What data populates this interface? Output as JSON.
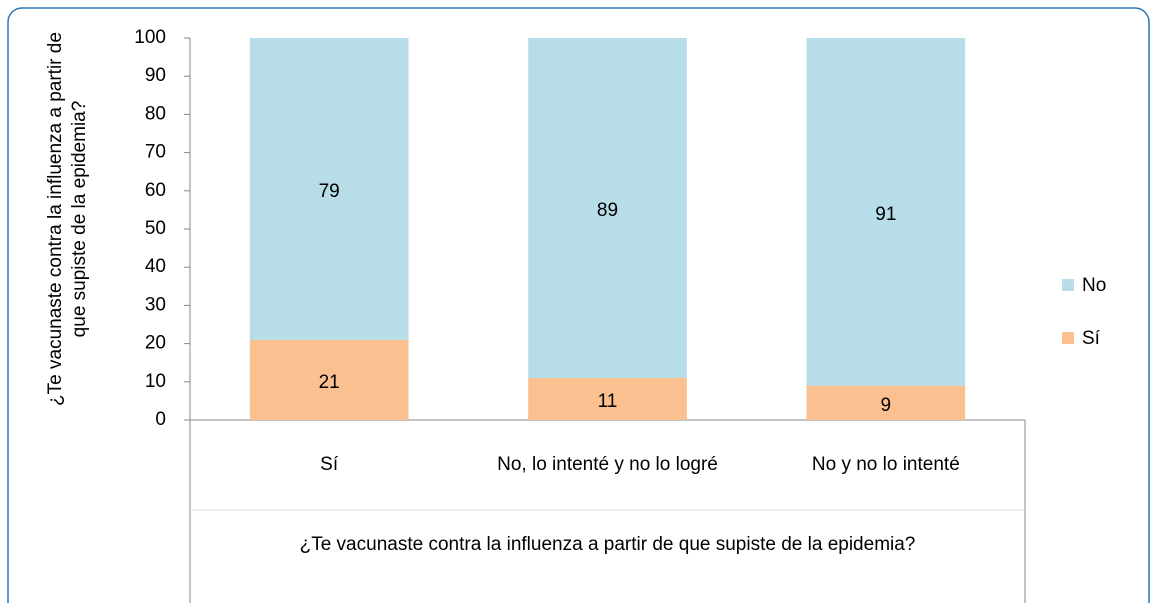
{
  "chart_data": {
    "type": "stacked_bar",
    "x_label": "¿Te vacunaste contra la influenza a partir de que supiste de la epidemia?",
    "y_label": "¿Te vacunaste contra la influenza a partir de que supiste de la epidemia?",
    "categories": [
      "Sí",
      "No, lo intenté y no lo logré",
      "No y no lo intenté"
    ],
    "series": [
      {
        "name": "Sí",
        "color": "#fac090",
        "values": [
          21,
          11,
          9
        ]
      },
      {
        "name": "No",
        "color": "#b7dde8",
        "values": [
          79,
          89,
          91
        ]
      }
    ],
    "ylim": [
      0,
      100
    ],
    "yticks": [
      0,
      10,
      20,
      30,
      40,
      50,
      60,
      70,
      80,
      90,
      100
    ],
    "legend": "right"
  }
}
